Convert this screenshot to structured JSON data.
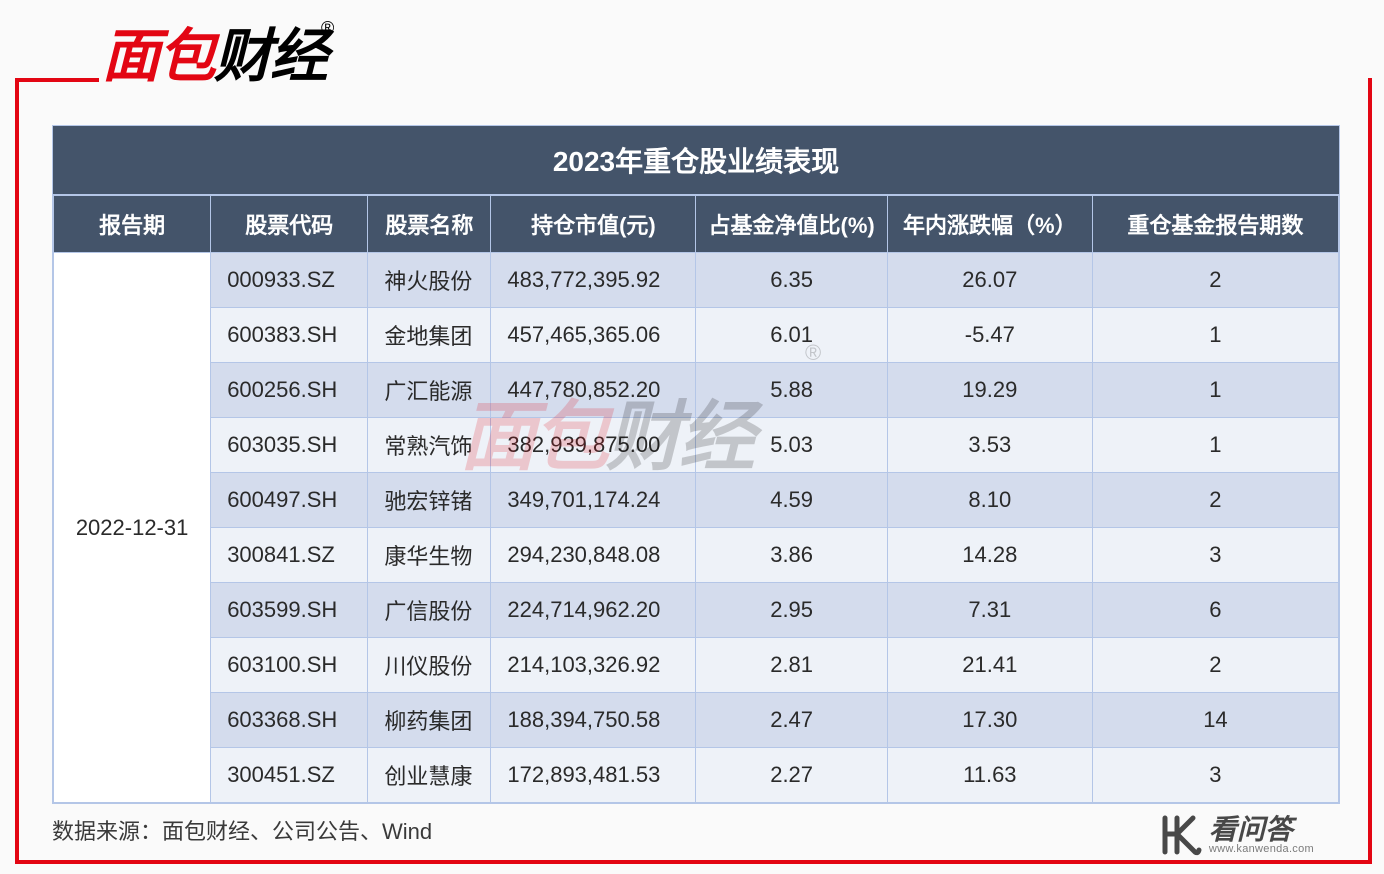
{
  "logo": {
    "red_text": "面包",
    "black_text": "财经",
    "reg_mark": "®"
  },
  "table": {
    "title": "2023年重仓股业绩表现",
    "columns": {
      "period": "报告期",
      "code": "股票代码",
      "name": "股票名称",
      "value": "持仓市值(元)",
      "ratio": "占基金净值比(%)",
      "change": "年内涨跌幅（%）",
      "periods": "重仓基金报告期数"
    },
    "period_value": "2022-12-31",
    "rows": [
      {
        "code": "000933.SZ",
        "name": "神火股份",
        "value": "483,772,395.92",
        "ratio": "6.35",
        "change": "26.07",
        "periods": "2"
      },
      {
        "code": "600383.SH",
        "name": "金地集团",
        "value": "457,465,365.06",
        "ratio": "6.01",
        "change": "-5.47",
        "periods": "1"
      },
      {
        "code": "600256.SH",
        "name": "广汇能源",
        "value": "447,780,852.20",
        "ratio": "5.88",
        "change": "19.29",
        "periods": "1"
      },
      {
        "code": "603035.SH",
        "name": "常熟汽饰",
        "value": "382,939,875.00",
        "ratio": "5.03",
        "change": "3.53",
        "periods": "1"
      },
      {
        "code": "600497.SH",
        "name": "驰宏锌锗",
        "value": "349,701,174.24",
        "ratio": "4.59",
        "change": "8.10",
        "periods": "2"
      },
      {
        "code": "300841.SZ",
        "name": "康华生物",
        "value": "294,230,848.08",
        "ratio": "3.86",
        "change": "14.28",
        "periods": "3"
      },
      {
        "code": "603599.SH",
        "name": "广信股份",
        "value": "224,714,962.20",
        "ratio": "2.95",
        "change": "7.31",
        "periods": "6"
      },
      {
        "code": "603100.SH",
        "name": "川仪股份",
        "value": "214,103,326.92",
        "ratio": "2.81",
        "change": "21.41",
        "periods": "2"
      },
      {
        "code": "603368.SH",
        "name": "柳药集团",
        "value": "188,394,750.58",
        "ratio": "2.47",
        "change": "17.30",
        "periods": "14"
      },
      {
        "code": "300451.SZ",
        "name": "创业慧康",
        "value": "172,893,481.53",
        "ratio": "2.27",
        "change": "11.63",
        "periods": "3"
      }
    ]
  },
  "footer_text": "数据来源：面包财经、公司公告、Wind",
  "bottom_brand": {
    "cn": "看问答",
    "url": "www.kanwenda.com"
  },
  "colors": {
    "header_bg": "#44546a",
    "border": "#b4c6e7",
    "row_odd": "#d4dced",
    "row_even": "#eef2f8",
    "accent_red": "#e30613"
  }
}
